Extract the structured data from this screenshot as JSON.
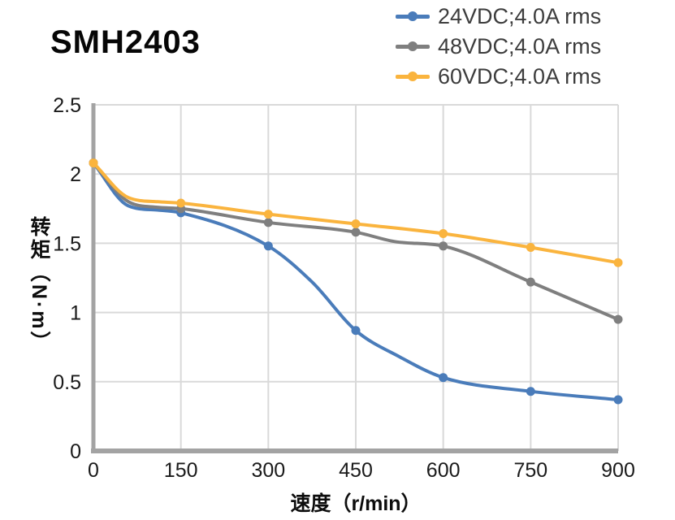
{
  "chart_data": {
    "type": "line",
    "title": "SMH2403",
    "xlabel": "速度（r/min）",
    "ylabel": "转矩（N·m）",
    "xlim": [
      0,
      900
    ],
    "ylim": [
      0,
      2.5
    ],
    "x_ticks": [
      0,
      150,
      300,
      450,
      600,
      750,
      900
    ],
    "y_ticks": [
      0,
      0.5,
      1,
      1.5,
      2,
      2.5
    ],
    "grid": true,
    "legend_position": "top-right",
    "legend_marker": "line-dot",
    "categories": [
      0,
      150,
      300,
      450,
      600,
      750,
      900
    ],
    "series": [
      {
        "name": "24VDC;4.0A rms",
        "color": "#4a7cba",
        "values": [
          2.08,
          1.72,
          1.48,
          0.87,
          0.53,
          0.43,
          0.37
        ],
        "curve_extra_points": [
          {
            "x": 60,
            "y": 1.77
          },
          {
            "x": 110,
            "y": 1.74
          },
          {
            "x": 375,
            "y": 1.22
          },
          {
            "x": 525,
            "y": 0.68
          }
        ]
      },
      {
        "name": "48VDC;4.0A rms",
        "color": "#7f7f7f",
        "values": [
          2.08,
          1.75,
          1.65,
          1.58,
          1.48,
          1.22,
          0.95
        ],
        "curve_extra_points": [
          {
            "x": 60,
            "y": 1.8
          },
          {
            "x": 110,
            "y": 1.76
          },
          {
            "x": 520,
            "y": 1.51
          }
        ]
      },
      {
        "name": "60VDC;4.0A rms",
        "color": "#fab43e",
        "values": [
          2.08,
          1.79,
          1.71,
          1.64,
          1.57,
          1.47,
          1.36
        ],
        "curve_extra_points": [
          {
            "x": 60,
            "y": 1.83
          },
          {
            "x": 110,
            "y": 1.8
          }
        ]
      }
    ],
    "style": {
      "grid_color": "#d9d9d9",
      "axis_color": "#a3a3a3",
      "tick_text_color": "#1a1a1a",
      "legend_text_color": "#3d3d3d",
      "title_color": "#060606"
    }
  }
}
